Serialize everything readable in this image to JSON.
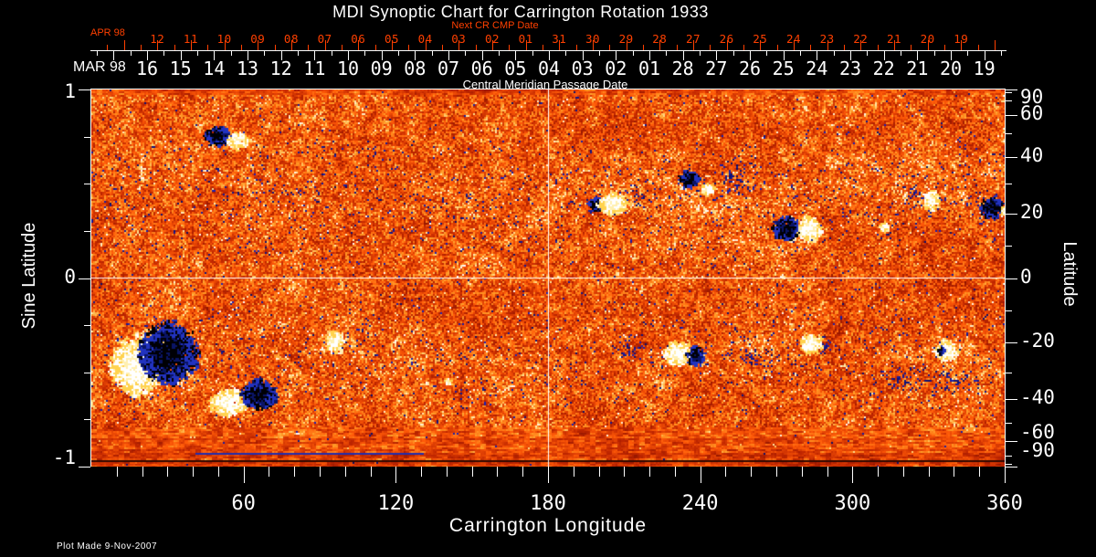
{
  "title": "MDI Synoptic Chart for Carrington Rotation 1933",
  "plot_made": "Plot Made  9-Nov-2007",
  "colors": {
    "background": "#000000",
    "foreground": "#ffffff",
    "accent_red": "#ff4000",
    "grid": "#ffffff"
  },
  "date_axis": {
    "subtitle": "Next CR CMP Date",
    "axis_label": "Central Meridian Passage Date",
    "top_month": "APR 98",
    "top_dates": [
      "12",
      "11",
      "10",
      "09",
      "08",
      "07",
      "06",
      "05",
      "04",
      "03",
      "02",
      "01",
      "31",
      "30",
      "29",
      "28",
      "27",
      "26",
      "25",
      "24",
      "23",
      "22",
      "21",
      "20",
      "19"
    ],
    "bottom_month": "MAR 98",
    "bottom_dates": [
      "16",
      "15",
      "14",
      "13",
      "12",
      "11",
      "10",
      "09",
      "08",
      "07",
      "06",
      "05",
      "04",
      "03",
      "02",
      "01",
      "28",
      "27",
      "26",
      "25",
      "24",
      "23",
      "22",
      "21",
      "20",
      "19"
    ]
  },
  "axes": {
    "left": {
      "title": "Sine Latitude",
      "tick_labels": [
        "1",
        "0",
        "-1"
      ],
      "tick_values": [
        1,
        0,
        -1
      ],
      "minor_step": 0.25
    },
    "right": {
      "title": "Latitude",
      "tick_labels": [
        "90",
        "60",
        "40",
        "20",
        "0",
        "-20",
        "-40",
        "-60",
        "-90"
      ],
      "tick_values": [
        90,
        60,
        40,
        20,
        0,
        -20,
        -40,
        -60,
        -90
      ],
      "minor_values": [
        80,
        70,
        50,
        30,
        10,
        -10,
        -30,
        -50,
        -70,
        -80
      ]
    },
    "bottom": {
      "title": "Carrington Longitude",
      "tick_labels": [
        "60",
        "120",
        "180",
        "240",
        "300",
        "360"
      ],
      "tick_values": [
        60,
        120,
        180,
        240,
        300,
        360
      ],
      "minor_step_deg": 10,
      "range_deg": [
        0,
        360
      ]
    }
  },
  "chart_data": {
    "type": "heatmap",
    "title": "MDI Synoptic Chart for Carrington Rotation 1933",
    "x_range_deg": [
      0,
      360
    ],
    "y_range_sine_latitude": [
      -1,
      1
    ],
    "gridlines": {
      "vertical_at_longitude_deg": 180,
      "horizontal_at_sine_latitude": 0
    },
    "palette": {
      "quiet_sun": [
        "#8c1400",
        "#d23000",
        "#ff5a08",
        "#ffa026"
      ],
      "plage": "#ffd24e",
      "positive_polarity": "#ffffff",
      "negative_polarity": "#000005",
      "negative_fringe": "#2233c0"
    },
    "active_regions": [
      {
        "lon": 49.3,
        "sl": 0.76,
        "pol": "n",
        "rx": 4.5,
        "ry": 0.045,
        "style": "blob"
      },
      {
        "lon": 57.6,
        "sl": 0.735,
        "pol": "p",
        "rx": 3.8,
        "ry": 0.038,
        "style": "blob"
      },
      {
        "lon": 198.5,
        "sl": 0.4,
        "pol": "n",
        "rx": 2.9,
        "ry": 0.034,
        "style": "blob"
      },
      {
        "lon": 205.2,
        "sl": 0.4,
        "pol": "p",
        "rx": 5.4,
        "ry": 0.05,
        "style": "blob"
      },
      {
        "lon": 235.1,
        "sl": 0.53,
        "pol": "n",
        "rx": 3.6,
        "ry": 0.04,
        "style": "blob"
      },
      {
        "lon": 242.3,
        "sl": 0.48,
        "pol": "p",
        "rx": 2.5,
        "ry": 0.025,
        "style": "blob"
      },
      {
        "lon": 273.6,
        "sl": 0.27,
        "pol": "n",
        "rx": 4.7,
        "ry": 0.058,
        "style": "blob"
      },
      {
        "lon": 282.6,
        "sl": 0.265,
        "pol": "p",
        "rx": 4.3,
        "ry": 0.058,
        "style": "blob"
      },
      {
        "lon": 330.6,
        "sl": 0.42,
        "pol": "p",
        "rx": 3.0,
        "ry": 0.05,
        "style": "blob"
      },
      {
        "lon": 354.6,
        "sl": 0.38,
        "pol": "n",
        "rx": 4.3,
        "ry": 0.05,
        "style": "blob"
      },
      {
        "lon": 359.5,
        "sl": 0.36,
        "pol": "p",
        "rx": 1.2,
        "ry": 0.022,
        "style": "blob"
      },
      {
        "lon": 312.0,
        "sl": 0.28,
        "pol": "p",
        "rx": 1.5,
        "ry": 0.025,
        "style": "blob"
      },
      {
        "lon": 17.3,
        "sl": -0.46,
        "pol": "p",
        "rx": 9.0,
        "ry": 0.14,
        "style": "blob"
      },
      {
        "lon": 29.9,
        "sl": -0.39,
        "pol": "n",
        "rx": 10.5,
        "ry": 0.145,
        "style": "blob"
      },
      {
        "lon": 54.0,
        "sl": -0.65,
        "pol": "p",
        "rx": 7.2,
        "ry": 0.063,
        "style": "blob"
      },
      {
        "lon": 65.5,
        "sl": -0.61,
        "pol": "n",
        "rx": 6.5,
        "ry": 0.068,
        "style": "blob"
      },
      {
        "lon": 95.4,
        "sl": -0.33,
        "pol": "p",
        "rx": 3.2,
        "ry": 0.05,
        "style": "blob"
      },
      {
        "lon": 140.4,
        "sl": -0.54,
        "pol": "p",
        "rx": 1.1,
        "ry": 0.016,
        "style": "blob"
      },
      {
        "lon": 230.4,
        "sl": -0.39,
        "pol": "p",
        "rx": 5.4,
        "ry": 0.058,
        "style": "blob"
      },
      {
        "lon": 237.6,
        "sl": -0.41,
        "pol": "n",
        "rx": 3.2,
        "ry": 0.044,
        "style": "blob"
      },
      {
        "lon": 283.3,
        "sl": -0.34,
        "pol": "p",
        "rx": 4.3,
        "ry": 0.044,
        "style": "blob"
      },
      {
        "lon": 336.6,
        "sl": -0.375,
        "pol": "p",
        "rx": 4.0,
        "ry": 0.05,
        "style": "blob"
      },
      {
        "lon": 334.5,
        "sl": -0.378,
        "pol": "n",
        "rx": 1.3,
        "ry": 0.02,
        "style": "blob"
      }
    ],
    "speck_zones": [
      {
        "lon": 97,
        "sl": 0.69,
        "rx": 25,
        "ry": 0.035,
        "amp": 0.1
      },
      {
        "lon": 80,
        "sl": 0.45,
        "rx": 20,
        "ry": 0.07,
        "amp": 0.05
      },
      {
        "lon": 216.7,
        "sl": 0.435,
        "rx": 4.3,
        "ry": 0.044,
        "amp": 0.3
      },
      {
        "lon": 253.8,
        "sl": 0.52,
        "rx": 6,
        "ry": 0.085,
        "amp": 0.25
      },
      {
        "lon": 323.6,
        "sl": 0.44,
        "rx": 3.2,
        "ry": 0.055,
        "amp": 0.35
      },
      {
        "lon": 355,
        "sl": 0.38,
        "rx": 5,
        "ry": 0.06,
        "amp": 0.22
      },
      {
        "lon": 212.4,
        "sl": -0.37,
        "rx": 5,
        "ry": 0.044,
        "amp": 0.3
      },
      {
        "lon": 261,
        "sl": -0.415,
        "rx": 5,
        "ry": 0.044,
        "amp": 0.35
      },
      {
        "lon": 319.5,
        "sl": -0.52,
        "rx": 7.5,
        "ry": 0.05,
        "amp": 0.3
      },
      {
        "lon": 341,
        "sl": -0.555,
        "rx": 8,
        "ry": 0.05,
        "amp": 0.25
      },
      {
        "lon": 289,
        "sl": -0.35,
        "rx": 1.8,
        "ry": 0.025,
        "amp": 0.5
      },
      {
        "lon": 151,
        "sl": -0.62,
        "rx": 10,
        "ry": 0.05,
        "amp": 0.06
      }
    ],
    "plage_zones": [
      {
        "lon": 240,
        "sl": 0.42,
        "rx": 50,
        "ry": 0.17,
        "amp": 0.09
      },
      {
        "lon": 25,
        "sl": -0.48,
        "rx": 28,
        "ry": 0.2,
        "amp": 0.11
      },
      {
        "lon": 333,
        "sl": -0.37,
        "rx": 14,
        "ry": 0.09,
        "amp": 0.15
      },
      {
        "lon": 330,
        "sl": 0.43,
        "rx": 13,
        "ry": 0.08,
        "amp": 0.13
      },
      {
        "lon": 95,
        "sl": -0.33,
        "rx": 9,
        "ry": 0.07,
        "amp": 0.12
      },
      {
        "lon": 115,
        "sl": 0.4,
        "rx": 35,
        "ry": 0.12,
        "amp": 0.05
      },
      {
        "lon": 57,
        "sl": 0.73,
        "rx": 7,
        "ry": 0.05,
        "amp": 0.1
      },
      {
        "lon": 278,
        "sl": 0.27,
        "rx": 10,
        "ry": 0.07,
        "amp": 0.09
      },
      {
        "lon": 235,
        "sl": -0.4,
        "rx": 12,
        "ry": 0.08,
        "amp": 0.09
      },
      {
        "lon": 205,
        "sl": 0.4,
        "rx": 8,
        "ry": 0.06,
        "amp": 0.1
      }
    ]
  }
}
